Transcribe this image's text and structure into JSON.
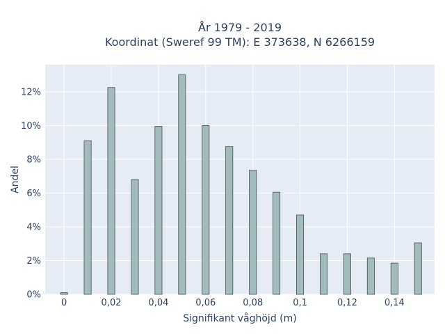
{
  "chart_data": {
    "type": "bar",
    "title": "År 1979 - 2019",
    "subtitle": "Koordinat (Sweref 99 TM): E 373638, N 6266159",
    "xlabel": "Signifikant våghöjd (m)",
    "ylabel": "Andel",
    "x": [
      0,
      0.01,
      0.02,
      0.03,
      0.04,
      0.05,
      0.06,
      0.07,
      0.08,
      0.09,
      0.1,
      0.11,
      0.12,
      0.13,
      0.14,
      0.15
    ],
    "values": [
      0.1,
      9.1,
      12.25,
      6.8,
      9.95,
      13.0,
      10.0,
      8.75,
      7.35,
      6.05,
      4.7,
      2.4,
      2.4,
      2.15,
      1.85,
      3.05
    ],
    "xlim": [
      -0.008,
      0.157
    ],
    "ylim": [
      0,
      13.6
    ],
    "x_ticks": [
      0,
      0.02,
      0.04,
      0.06,
      0.08,
      0.1,
      0.12,
      0.14
    ],
    "x_tick_labels": [
      "0",
      "0,02",
      "0,04",
      "0,06",
      "0,08",
      "0,1",
      "0,12",
      "0,14"
    ],
    "y_ticks": [
      0,
      2,
      4,
      6,
      8,
      10,
      12
    ],
    "y_tick_labels": [
      "0%",
      "2%",
      "4%",
      "6%",
      "8%",
      "10%",
      "12%"
    ],
    "bar_width": 0.003,
    "grid": true,
    "colors": {
      "plot_bg": "#e5ecf6",
      "grid": "#ffffff",
      "bar_fill": "#a3bbbd",
      "bar_stroke": "#3d4f50",
      "text": "#2a3f5f"
    }
  }
}
